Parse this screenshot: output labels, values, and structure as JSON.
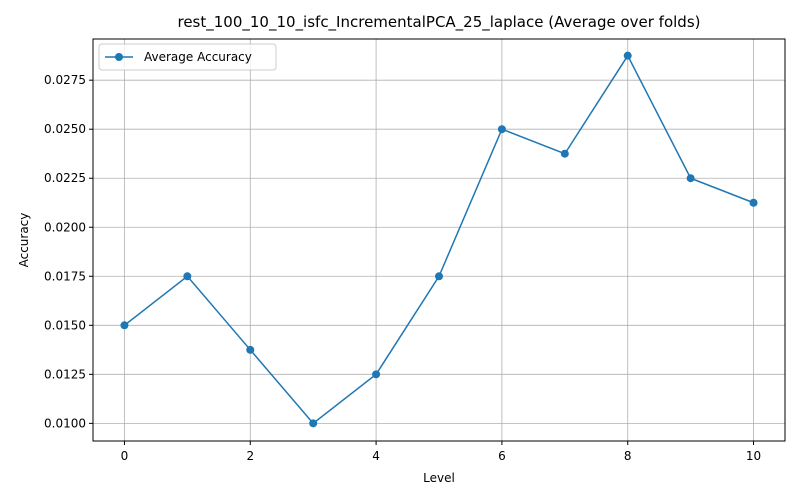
{
  "chart_data": {
    "type": "line",
    "title": "rest_100_10_10_isfc_IncrementalPCA_25_laplace (Average over folds)",
    "xlabel": "Level",
    "ylabel": "Accuracy",
    "xlim": [
      -0.5,
      10.5
    ],
    "ylim": [
      0.0091,
      0.0296
    ],
    "xticks": [
      0,
      2,
      4,
      6,
      8,
      10
    ],
    "xtick_labels": [
      "0",
      "2",
      "4",
      "6",
      "8",
      "10"
    ],
    "yticks": [
      0.01,
      0.0125,
      0.015,
      0.0175,
      0.02,
      0.0225,
      0.025,
      0.0275
    ],
    "ytick_labels": [
      "0.0100",
      "0.0125",
      "0.0150",
      "0.0175",
      "0.0200",
      "0.0225",
      "0.0250",
      "0.0275"
    ],
    "grid": true,
    "legend_position": "top-left",
    "series": [
      {
        "name": "Average Accuracy",
        "color": "#1f77b4",
        "marker": "circle",
        "x": [
          0,
          1,
          2,
          3,
          4,
          5,
          6,
          7,
          8,
          9,
          10
        ],
        "y": [
          0.015,
          0.0175,
          0.01375,
          0.01,
          0.0125,
          0.0175,
          0.025,
          0.02375,
          0.02875,
          0.0225,
          0.02125
        ]
      }
    ]
  }
}
